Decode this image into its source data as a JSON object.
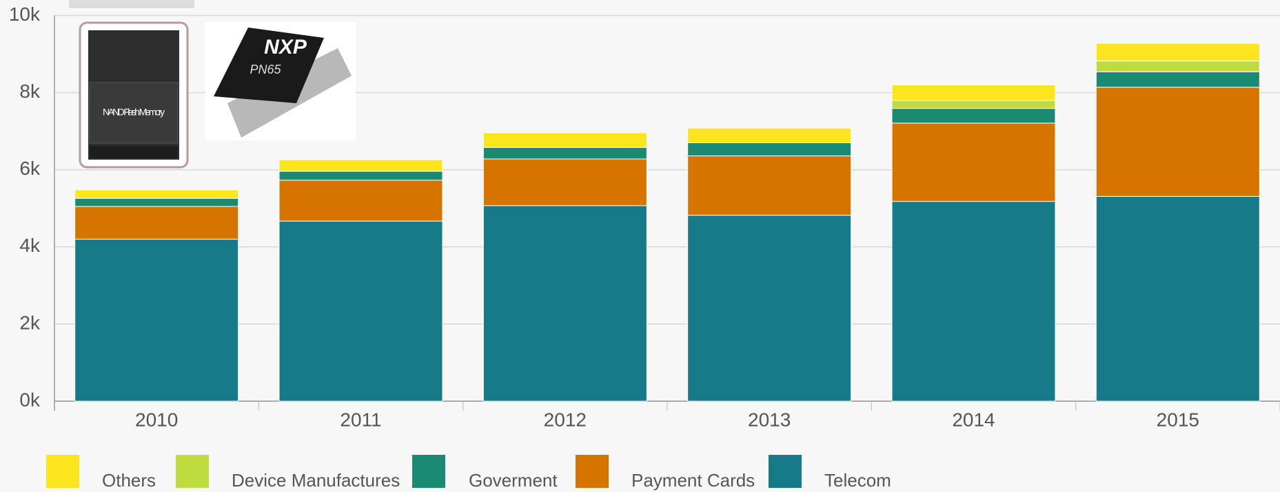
{
  "chart_data": {
    "type": "stacked_bar",
    "categories": [
      "2010",
      "2011",
      "2012",
      "2013",
      "2014",
      "2015"
    ],
    "series": [
      {
        "name": "Telecom",
        "color": "#167a88",
        "values": [
          4200,
          4670,
          5070,
          4820,
          5180,
          5310
        ]
      },
      {
        "name": "Payment Cards",
        "color": "#d57500",
        "values": [
          850,
          1060,
          1210,
          1540,
          2030,
          2830
        ]
      },
      {
        "name": "Goverment",
        "color": "#1b8a72",
        "values": [
          210,
          230,
          300,
          340,
          380,
          400
        ]
      },
      {
        "name": "Device Manufactures",
        "color": "#bfdc3f",
        "values": [
          0,
          0,
          0,
          0,
          210,
          280
        ]
      },
      {
        "name": "Others",
        "color": "#fde51d",
        "values": [
          220,
          300,
          380,
          380,
          400,
          460
        ]
      }
    ],
    "legend_order": [
      4,
      3,
      2,
      1,
      0
    ],
    "ylim": [
      0,
      10000
    ],
    "yticks": [
      {
        "value": 0,
        "label": "0k"
      },
      {
        "value": 2000,
        "label": "2k"
      },
      {
        "value": 4000,
        "label": "4k"
      },
      {
        "value": 6000,
        "label": "6k"
      },
      {
        "value": 8000,
        "label": "8k"
      },
      {
        "value": 10000,
        "label": "10k"
      }
    ],
    "grid": true,
    "images": {
      "memory_card": "NAND Flash Memory",
      "chip_brand": "NXP",
      "chip_model": "PN65"
    }
  }
}
